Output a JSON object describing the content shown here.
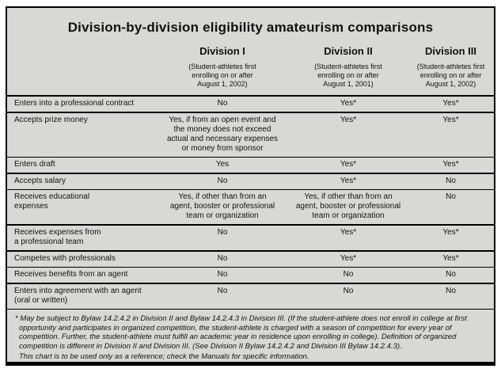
{
  "title": "Division-by-division eligibility amateurism comparisons",
  "columns": [
    {
      "name": "Division I",
      "subtitle": "(Student-athletes first\nenrolling on or after\nAugust 1, 2002)"
    },
    {
      "name": "Division II",
      "subtitle": "(Student-athletes first\nenrolling on or after\nAugust 1, 2001)"
    },
    {
      "name": "Division III",
      "subtitle": "(Student-athletes first\nenrolling on or after\nAugust 1, 2002)"
    }
  ],
  "rows": [
    {
      "label": "Enters into a professional contract",
      "division_i": "No",
      "division_ii": "Yes*",
      "division_iii": "Yes*"
    },
    {
      "label": "Accepts prize money",
      "division_i": "Yes, if from an open event and\nthe money does not exceed\nactual and necessary expenses\nor money from sponsor",
      "division_ii": "Yes*",
      "division_iii": "Yes*"
    },
    {
      "label": "Enters draft",
      "division_i": "Yes",
      "division_ii": "Yes*",
      "division_iii": "Yes*"
    },
    {
      "label": "Accepts salary",
      "division_i": "No",
      "division_ii": "Yes*",
      "division_iii": "No"
    },
    {
      "label": "Receives educational\nexpenses",
      "division_i": "Yes, if other than from an\nagent, booster or professional\nteam or organization",
      "division_ii": "Yes, if other than from an\nagent, booster or professional\nteam or organization",
      "division_iii": "No"
    },
    {
      "label": "Receives expenses from\na professional team",
      "division_i": "No",
      "division_ii": "Yes*",
      "division_iii": "Yes*"
    },
    {
      "label": "Competes with professionals",
      "division_i": "No",
      "division_ii": "Yes*",
      "division_iii": "Yes*"
    },
    {
      "label": "Receives benefits from an agent",
      "division_i": "No",
      "division_ii": "No",
      "division_iii": "No"
    },
    {
      "label": "Enters into agreement with an agent\n(oral or written)",
      "division_i": "No",
      "division_ii": "No",
      "division_iii": "No"
    }
  ],
  "footnotes": {
    "asterisk_note": "* May be subject to Bylaw 14.2.4.2 in Division II and Bylaw 14.2.4.3 in Division III. (If the student-athlete does not enroll in college at first opportunity and participates in organized competition, the student-athlete is charged with a season of competition for every year of competition. Further, the student-athlete must fulfill an academic year in residence upon enrolling in college). Definition of organized competition is different in Division II and Division III. (See Division II Bylaw 14.2.4.2 and Division III Bylaw 14.2.4.3).",
    "reference_note": "This chart is to be used only as a reference; check the Manuals for specific information."
  },
  "colors": {
    "background": "#d8d8d4",
    "border": "#000000",
    "text": "#111111"
  }
}
